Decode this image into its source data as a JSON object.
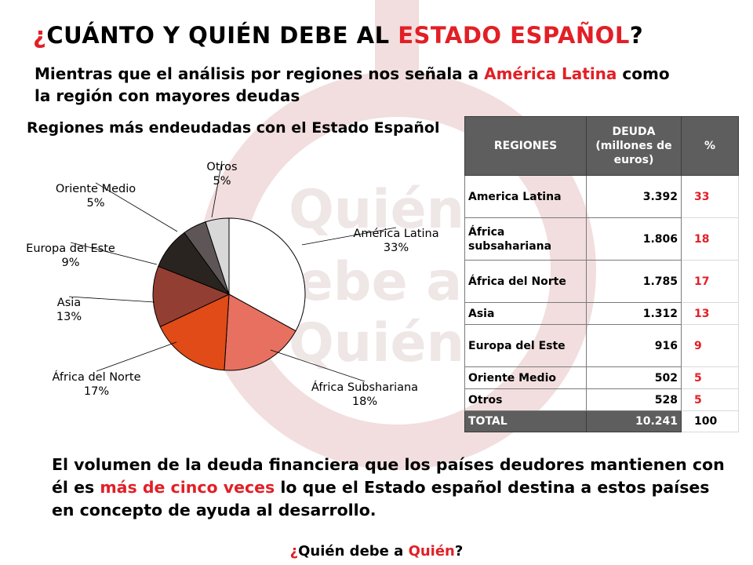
{
  "slide": {
    "title": {
      "open_q": "¿",
      "pre": "CUÁNTO Y QUIÉN DEBE AL ",
      "highlight": "ESTADO ESPAÑOL",
      "close_q": "?"
    },
    "subtitle": {
      "pre": "Mientras que el análisis por regiones nos señala a ",
      "highlight": "América Latina",
      "post": " como la región con mayores deudas"
    },
    "body": {
      "pre": "El volumen de la deuda financiera que los países deudores mantienen con él es ",
      "highlight": "más de cinco veces",
      "post": " lo que el Estado español destina a estos países en concepto de ayuda al desarrollo."
    },
    "footer": {
      "open_q": "¿",
      "pre": "Quién debe a ",
      "highlight": "Quién",
      "close_q": "?"
    },
    "background_watermark": {
      "lines": [
        "Quién",
        "debe a",
        "Quién"
      ]
    },
    "colors": {
      "accent_red": "#e21f26",
      "table_header": "#5e5e5e",
      "watermark": "#f2dede"
    }
  },
  "table": {
    "headers": [
      "REGIONES",
      "DEUDA (millones de euros)",
      "%"
    ],
    "rows": [
      {
        "region": "America Latina",
        "debt": "3.392",
        "pct": "33"
      },
      {
        "region": "África subsahariana",
        "debt": "1.806",
        "pct": "18"
      },
      {
        "region": "África del Norte",
        "debt": "1.785",
        "pct": "17"
      },
      {
        "region": "Asia",
        "debt": "1.312",
        "pct": "13"
      },
      {
        "region": "Europa del Este",
        "debt": "916",
        "pct": "9"
      },
      {
        "region": "Oriente Medio",
        "debt": "502",
        "pct": "5"
      },
      {
        "region": "Otros",
        "debt": "528",
        "pct": "5"
      }
    ],
    "total": {
      "region": "TOTAL",
      "debt": "10.241",
      "pct": "100"
    }
  },
  "chart_data": {
    "type": "pie",
    "title": "Regiones más endeudadas con el Estado Español",
    "slices": [
      {
        "label": "América Latina",
        "value": 33,
        "pct_label": "33%",
        "color": "#ffffff"
      },
      {
        "label": "África Subshariana",
        "value": 18,
        "pct_label": "18%",
        "color": "#e87060"
      },
      {
        "label": "África del Norte",
        "value": 17,
        "pct_label": "17%",
        "color": "#e04b17"
      },
      {
        "label": "Asia",
        "value": 13,
        "pct_label": "13%",
        "color": "#933e32"
      },
      {
        "label": "Europa del Este",
        "value": 9,
        "pct_label": "9%",
        "color": "#2a2420"
      },
      {
        "label": "Oriente Medio",
        "value": 5,
        "pct_label": "5%",
        "color": "#5e5656"
      },
      {
        "label": "Otros",
        "value": 5,
        "pct_label": "5%",
        "color": "#d8d8d8"
      }
    ],
    "start": "12 o'clock",
    "direction": "clockwise",
    "legend": "none (labels with leader lines)"
  }
}
